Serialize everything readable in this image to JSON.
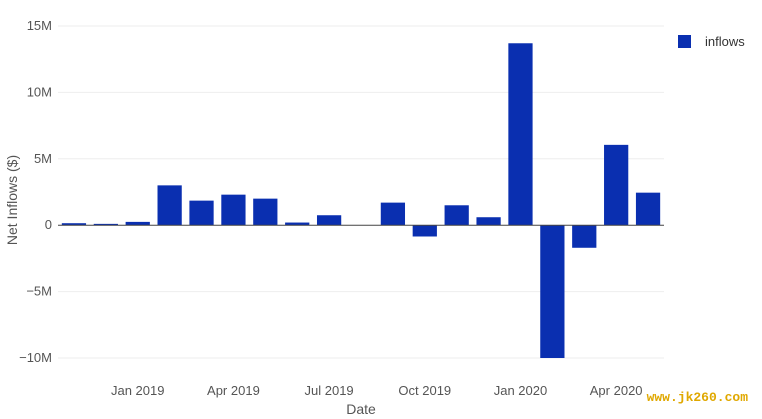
{
  "chart_data": {
    "type": "bar",
    "title": "",
    "xlabel": "Date",
    "ylabel": "Net Inflows ($)",
    "ylim": [
      -10000000,
      15000000
    ],
    "grid": true,
    "legend_position": "top-right",
    "y_ticks": [
      {
        "value": 15000000,
        "label": "15M"
      },
      {
        "value": 10000000,
        "label": "10M"
      },
      {
        "value": 5000000,
        "label": "5M"
      },
      {
        "value": 0,
        "label": "0"
      },
      {
        "value": -5000000,
        "label": "−5M"
      },
      {
        "value": -10000000,
        "label": "−10M"
      }
    ],
    "x_ticks": [
      {
        "label": "Jan 2019",
        "position": 2.5
      },
      {
        "label": "Apr 2019",
        "position": 5.5
      },
      {
        "label": "Jul 2019",
        "position": 8.5
      },
      {
        "label": "Oct 2019",
        "position": 11.5
      },
      {
        "label": "Jan 2020",
        "position": 14.5
      },
      {
        "label": "Apr 2020",
        "position": 17.5
      }
    ],
    "series": [
      {
        "name": "inflows",
        "color": "#0a2fb0",
        "x": [
          "2018-10",
          "2018-11",
          "2018-12",
          "2019-01",
          "2019-02",
          "2019-03",
          "2019-04",
          "2019-05",
          "2019-06",
          "2019-07",
          "2019-08",
          "2019-09",
          "2019-10",
          "2019-11",
          "2019-12",
          "2020-01",
          "2020-02",
          "2020-03",
          "2020-04"
        ],
        "values": [
          150000,
          100000,
          250000,
          3000000,
          1850000,
          2300000,
          2000000,
          200000,
          750000,
          0,
          1700000,
          -850000,
          1500000,
          600000,
          13700000,
          -10000000,
          -1700000,
          6050000,
          2450000
        ]
      }
    ]
  },
  "watermark": "www.jk260.com"
}
